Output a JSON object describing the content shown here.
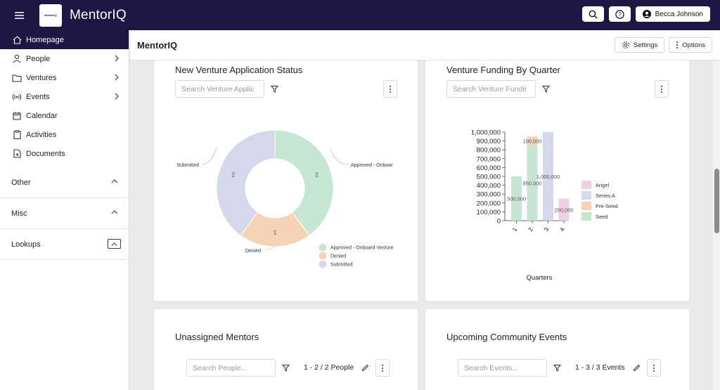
{
  "topbar": {
    "logo_text": "MentorIQ",
    "app_title": "MentorIQ",
    "user_name": "Becca Johnson"
  },
  "sidebar": {
    "items": [
      {
        "label": "Homepage",
        "icon": "home-icon"
      },
      {
        "label": "People",
        "icon": "person-icon"
      },
      {
        "label": "Ventures",
        "icon": "folder-icon"
      },
      {
        "label": "Events",
        "icon": "broadcast-icon"
      },
      {
        "label": "Calendar",
        "icon": "calendar-icon"
      },
      {
        "label": "Activities",
        "icon": "clipboard-icon"
      },
      {
        "label": "Documents",
        "icon": "document-icon"
      }
    ],
    "sections": [
      {
        "label": "Other"
      },
      {
        "label": "Misc"
      },
      {
        "label": "Lookups"
      }
    ]
  },
  "header": {
    "title": "MentorIQ",
    "settings_label": "Settings",
    "options_label": "Options"
  },
  "cards": {
    "status": {
      "title": "New Venture Application Status",
      "search_placeholder": "Search Venture Applic"
    },
    "funding": {
      "title": "Venture Funding By Quarter",
      "search_placeholder": "Search Venture Fundir"
    },
    "mentors": {
      "title": "Unassigned Mentors",
      "search_placeholder": "Search People...",
      "count": "1 - 2 / 2 People"
    },
    "events": {
      "title": "Upcoming Community Events",
      "search_placeholder": "Search Events...",
      "count": "1 - 3 / 3 Events"
    }
  },
  "chart_data": [
    {
      "type": "pie",
      "variant": "donut",
      "title": "New Venture Application Status",
      "categories": [
        "Approved - Onboard Venture",
        "Denied",
        "Submitted"
      ],
      "values": [
        2,
        1,
        2
      ],
      "slice_labels": [
        "Approved - Onboar",
        "Denied",
        "Submitted"
      ],
      "colors": [
        "#c7e6d2",
        "#f6d2b6",
        "#d4d8ea"
      ],
      "legend": "bottom-right"
    },
    {
      "type": "bar",
      "title": "Venture Funding By Quarter",
      "categories": [
        "1",
        "2",
        "3",
        "4"
      ],
      "xlabel": "Quarters",
      "ylabel": "",
      "ylim": [
        0,
        1000000
      ],
      "yticks": [
        "0",
        "100,000",
        "200,000",
        "300,000",
        "400,000",
        "500,000",
        "600,000",
        "700,000",
        "800,000",
        "900,000",
        "1,000,000"
      ],
      "series": [
        {
          "name": "Seed",
          "color": "#c7e6d2",
          "values": [
            500000,
            850000,
            0,
            0
          ]
        },
        {
          "name": "Pre-Seed",
          "color": "#f6d2b6",
          "values": [
            0,
            100000,
            0,
            0
          ]
        },
        {
          "name": "Series A",
          "color": "#d4d8ea",
          "values": [
            0,
            0,
            1000000,
            0
          ]
        },
        {
          "name": "Angel",
          "color": "#f1d0e6",
          "values": [
            0,
            0,
            0,
            250000
          ]
        }
      ],
      "data_labels": [
        "500,000",
        "850,000",
        "100,000",
        "1,000,000",
        "250,000"
      ],
      "legend_order": [
        "Angel",
        "Series A",
        "Pre-Seed",
        "Seed"
      ],
      "legend": "right"
    }
  ]
}
